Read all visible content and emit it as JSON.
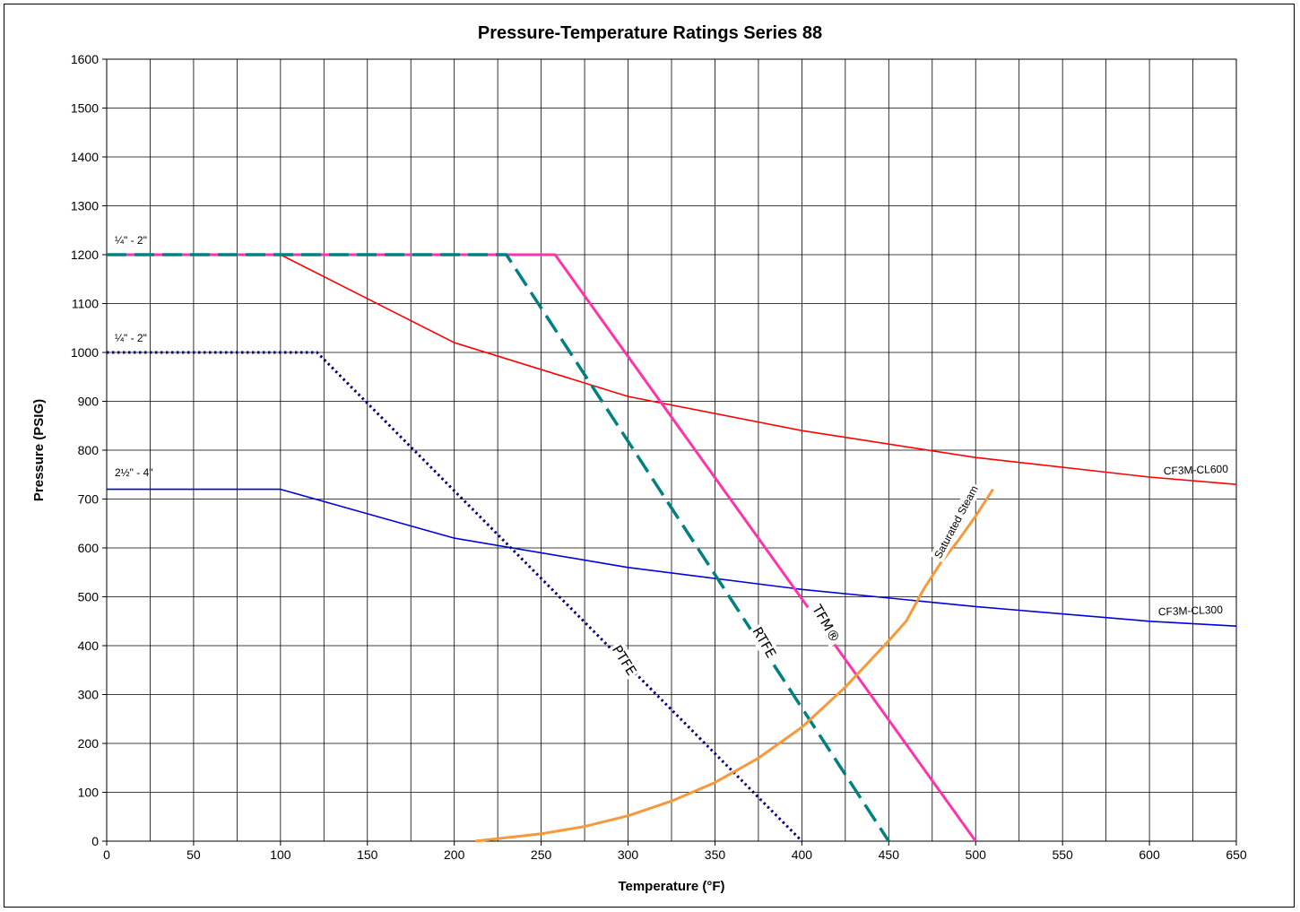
{
  "chart_data": {
    "type": "line",
    "title": "Pressure-Temperature Ratings Series 88",
    "xlabel": "Temperature (°F)",
    "ylabel": "Pressure (PSIG)",
    "xlim": [
      0,
      650
    ],
    "ylim": [
      0,
      1600
    ],
    "xticks": [
      0,
      50,
      100,
      150,
      200,
      250,
      300,
      350,
      400,
      450,
      500,
      550,
      600,
      650
    ],
    "yticks": [
      0,
      100,
      200,
      300,
      400,
      500,
      600,
      700,
      800,
      900,
      1000,
      1100,
      1200,
      1300,
      1400,
      1500,
      1600
    ],
    "grid": true,
    "series": [
      {
        "name": "CF3M-CL600",
        "color": "#ff0000",
        "style": "solid",
        "points": [
          [
            0,
            1200
          ],
          [
            100,
            1200
          ],
          [
            200,
            1020
          ],
          [
            300,
            910
          ],
          [
            400,
            840
          ],
          [
            500,
            785
          ],
          [
            600,
            745
          ],
          [
            650,
            730
          ]
        ]
      },
      {
        "name": "CF3M-CL300",
        "color": "#0000dd",
        "style": "solid",
        "points": [
          [
            0,
            720
          ],
          [
            100,
            720
          ],
          [
            200,
            620
          ],
          [
            300,
            560
          ],
          [
            400,
            515
          ],
          [
            500,
            480
          ],
          [
            600,
            450
          ],
          [
            650,
            440
          ]
        ]
      },
      {
        "name": "TFM®",
        "color": "#ff33aa",
        "style": "solid",
        "points": [
          [
            0,
            1200
          ],
          [
            258,
            1200
          ],
          [
            500,
            0
          ]
        ]
      },
      {
        "name": "RTFE",
        "color": "#008080",
        "style": "dashed",
        "points": [
          [
            0,
            1200
          ],
          [
            230,
            1200
          ],
          [
            450,
            0
          ]
        ]
      },
      {
        "name": "PTFE",
        "color": "#000080",
        "style": "dotted",
        "points": [
          [
            0,
            1000
          ],
          [
            121,
            1000
          ],
          [
            400,
            0
          ]
        ]
      },
      {
        "name": "Saturated Steam",
        "color": "#f7983a",
        "style": "solid",
        "points": [
          [
            212,
            0
          ],
          [
            250,
            15
          ],
          [
            275,
            30
          ],
          [
            300,
            52
          ],
          [
            325,
            82
          ],
          [
            350,
            120
          ],
          [
            375,
            170
          ],
          [
            400,
            233
          ],
          [
            425,
            315
          ],
          [
            450,
            410
          ],
          [
            460,
            450
          ],
          [
            470,
            515
          ],
          [
            480,
            570
          ],
          [
            490,
            615
          ],
          [
            500,
            665
          ],
          [
            510,
            720
          ]
        ]
      }
    ],
    "annotations": [
      {
        "text": "¼\" - 2\""
      },
      {
        "text": "¼\" - 2\""
      },
      {
        "text": "2½\" - 4\""
      }
    ]
  }
}
